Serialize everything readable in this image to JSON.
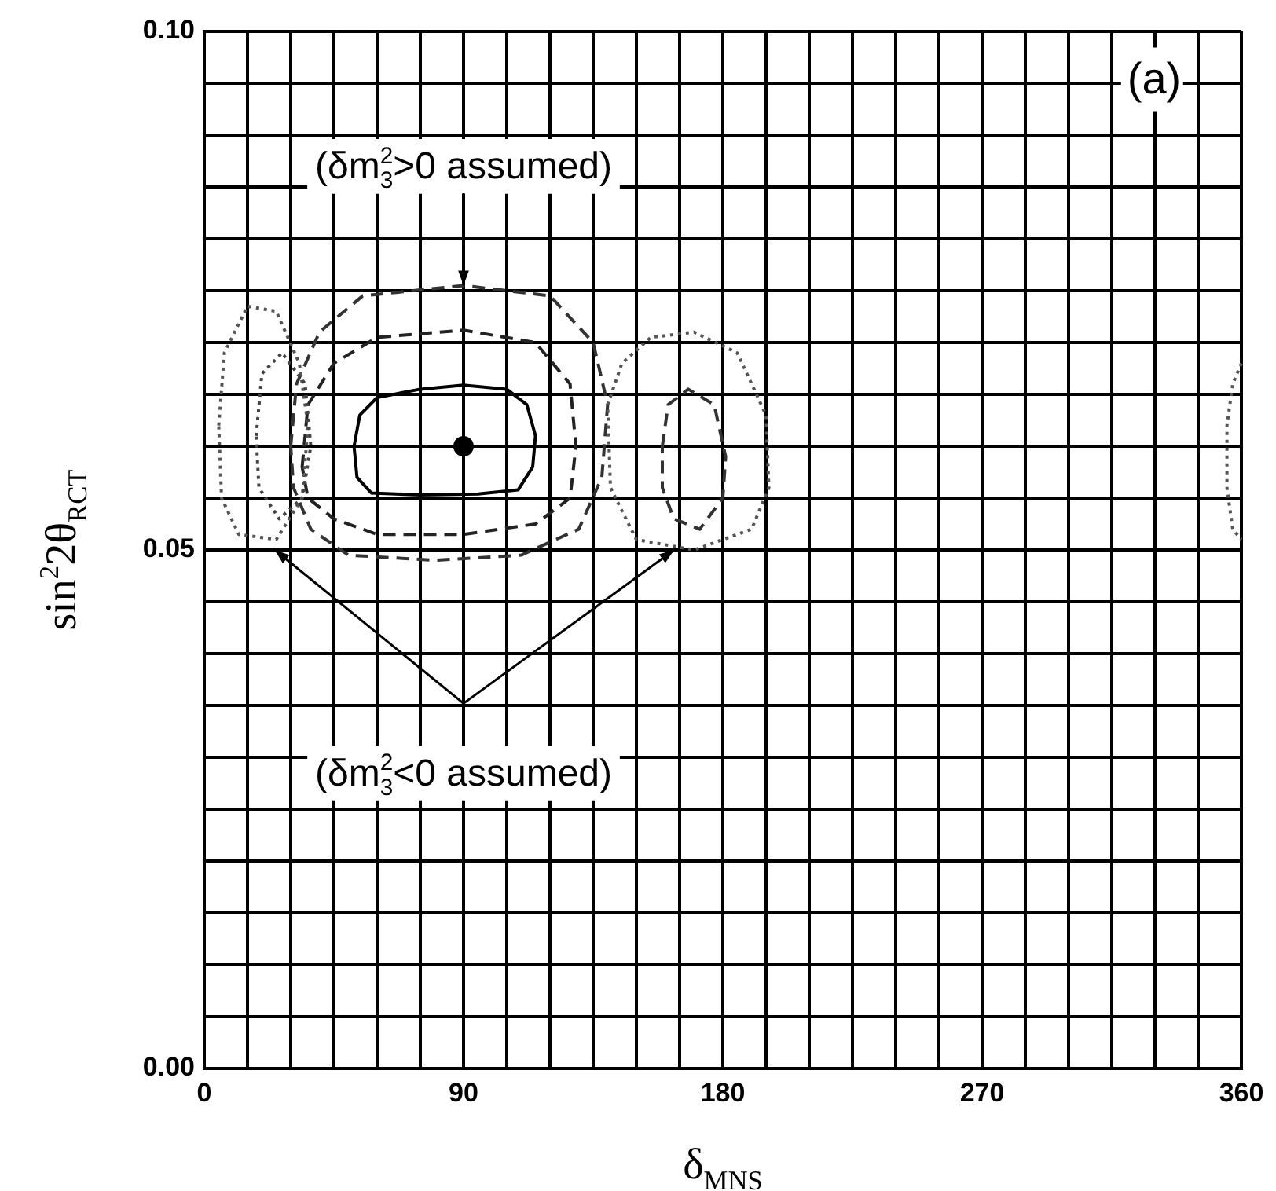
{
  "chart_data": {
    "type": "scatter",
    "xlabel": "δ$_{MNS}$",
    "ylabel": "sin$^{2}$2θ$_{RCT}$",
    "xlim": [
      0,
      360
    ],
    "ylim": [
      0,
      0.1
    ],
    "xticks": [
      0,
      {
        "value": 15,
        "label": null
      },
      {
        "value": 30,
        "label": null
      },
      {
        "value": 45,
        "label": null
      },
      {
        "value": 60,
        "label": null
      },
      {
        "value": 75,
        "label": null
      },
      90,
      {
        "value": 105,
        "label": null
      },
      {
        "value": 120,
        "label": null
      },
      {
        "value": 135,
        "label": null
      },
      {
        "value": 150,
        "label": null
      },
      {
        "value": 165,
        "label": null
      },
      180,
      {
        "value": 195,
        "label": null
      },
      {
        "value": 210,
        "label": null
      },
      {
        "value": 225,
        "label": null
      },
      {
        "value": 240,
        "label": null
      },
      {
        "value": 255,
        "label": null
      },
      270,
      {
        "value": 285,
        "label": null
      },
      {
        "value": 300,
        "label": null
      },
      {
        "value": 315,
        "label": null
      },
      {
        "value": 330,
        "label": null
      },
      {
        "value": 345,
        "label": null
      },
      360
    ],
    "yticks": [
      {
        "value": 0,
        "label": "0.00"
      },
      {
        "value": 0.005,
        "label": null
      },
      {
        "value": 0.01,
        "label": null
      },
      {
        "value": 0.015,
        "label": null
      },
      {
        "value": 0.02,
        "label": null
      },
      {
        "value": 0.025,
        "label": null
      },
      {
        "value": 0.03,
        "label": null
      },
      {
        "value": 0.035,
        "label": null
      },
      {
        "value": 0.04,
        "label": null
      },
      {
        "value": 0.045,
        "label": null
      },
      0.05,
      {
        "value": 0.055,
        "label": null
      },
      {
        "value": 0.06,
        "label": null
      },
      {
        "value": 0.065,
        "label": null
      },
      {
        "value": 0.07,
        "label": null
      },
      {
        "value": 0.075,
        "label": null
      },
      {
        "value": 0.08,
        "label": null
      },
      {
        "value": 0.085,
        "label": null
      },
      {
        "value": 0.09,
        "label": null
      },
      {
        "value": 0.095,
        "label": null
      },
      {
        "value": 0.1,
        "label": "0.10"
      }
    ],
    "grid": true,
    "marker": "circle",
    "color": "#000000",
    "x": [
      90
    ],
    "values": [
      0.06
    ],
    "annotations": [
      "(a)",
      "(δm$^{2}$$_{3}$>0 assumed)",
      "(δm$^{2}$$_{3}$<0 assumed)"
    ]
  }
}
